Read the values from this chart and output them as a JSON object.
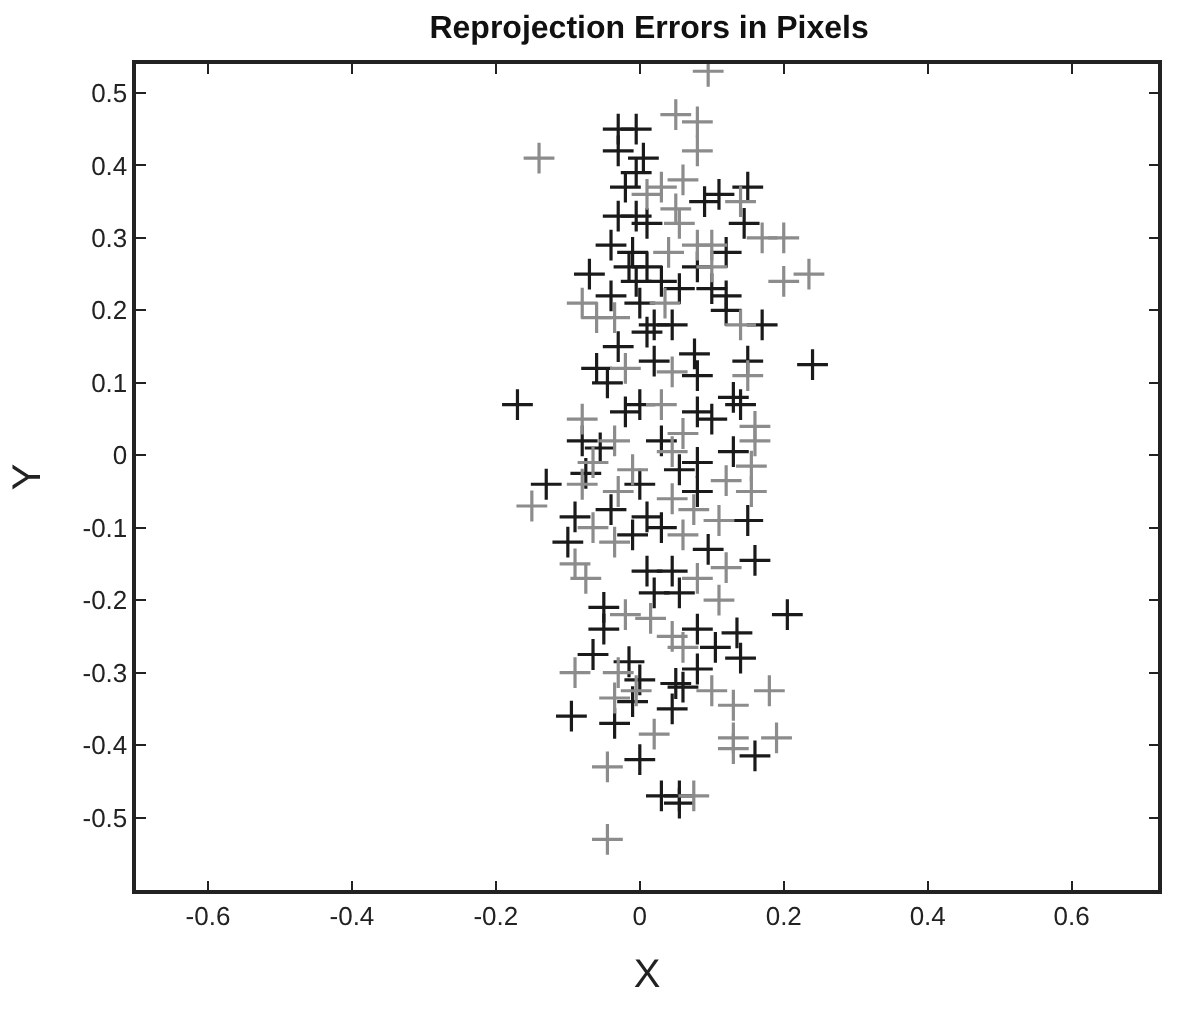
{
  "chart_data": {
    "type": "scatter",
    "title": "Reprojection Errors in Pixels",
    "xlabel": "X",
    "ylabel": "Y",
    "xlim": [
      -0.7,
      0.72
    ],
    "ylim": [
      -0.6,
      0.54
    ],
    "xticks": [
      -0.6,
      -0.4,
      -0.2,
      0,
      0.2,
      0.4,
      0.6
    ],
    "yticks": [
      -0.5,
      -0.4,
      -0.3,
      -0.2,
      -0.1,
      0,
      0.1,
      0.2,
      0.3,
      0.4,
      0.5
    ],
    "marker": "cross",
    "series": [
      {
        "color": "#1a1a1a",
        "x": [
          -0.03,
          -0.005,
          -0.03,
          0.005,
          -0.005,
          -0.02,
          0.11,
          0.09,
          0.15,
          -0.03,
          -0.005,
          0.01,
          0.145,
          -0.04,
          -0.01,
          0.12,
          -0.015,
          0.01,
          -0.07,
          0.03,
          0.08,
          -0.005,
          0.055,
          0.1,
          -0.04,
          0.0,
          0.12,
          0.02,
          0.045,
          0.12,
          0.17,
          0.24,
          0.15,
          -0.06,
          -0.045,
          0.02,
          0.08,
          0.076,
          -0.03,
          0.01,
          -0.17,
          0.13,
          0.14,
          0.1,
          -0.02,
          0.0,
          0.08,
          -0.08,
          -0.055,
          0.03,
          0.13,
          0.08,
          -0.075,
          0.055,
          -0.13,
          0.0,
          0.08,
          -0.04,
          -0.09,
          0.01,
          0.15,
          0.03,
          -0.1,
          -0.01,
          0.095,
          0.16,
          0.01,
          0.045,
          0.205,
          -0.05,
          0.02,
          0.055,
          -0.05,
          0.08,
          0.135,
          -0.065,
          -0.015,
          0.105,
          0.14,
          0.0,
          0.08,
          0.05,
          0.06,
          -0.01,
          0.045,
          -0.095,
          -0.035,
          0.16,
          0.0,
          0.03,
          0.055,
          0.055
        ],
        "values": [
          0.45,
          0.45,
          0.42,
          0.41,
          0.39,
          0.37,
          0.36,
          0.35,
          0.37,
          0.33,
          0.33,
          0.32,
          0.32,
          0.29,
          0.28,
          0.28,
          0.26,
          0.26,
          0.25,
          0.24,
          0.26,
          0.24,
          0.23,
          0.23,
          0.22,
          0.21,
          0.22,
          0.18,
          0.18,
          0.2,
          0.18,
          0.125,
          0.13,
          0.12,
          0.1,
          0.13,
          0.11,
          0.14,
          0.15,
          0.17,
          0.07,
          0.08,
          0.07,
          0.05,
          0.06,
          0.07,
          0.06,
          0.02,
          0.01,
          0.02,
          0.005,
          -0.01,
          -0.025,
          -0.02,
          -0.04,
          -0.04,
          -0.05,
          -0.075,
          -0.085,
          -0.085,
          -0.09,
          -0.1,
          -0.12,
          -0.11,
          -0.13,
          -0.145,
          -0.16,
          -0.16,
          -0.22,
          -0.21,
          -0.19,
          -0.19,
          -0.24,
          -0.24,
          -0.245,
          -0.275,
          -0.285,
          -0.265,
          -0.28,
          -0.31,
          -0.295,
          -0.315,
          -0.32,
          -0.34,
          -0.35,
          -0.36,
          -0.37,
          -0.415,
          -0.42,
          -0.47,
          -0.47,
          -0.48
        ]
      },
      {
        "color": "#8c8c8c",
        "x": [
          0.095,
          0.05,
          0.08,
          0.08,
          -0.14,
          0.01,
          0.06,
          0.03,
          0.14,
          0.05,
          0.055,
          0.17,
          0.2,
          0.04,
          0.08,
          0.1,
          0.1,
          0.2,
          0.235,
          -0.08,
          -0.06,
          -0.035,
          0.035,
          0.14,
          0.15,
          -0.02,
          0.045,
          0.16,
          0.16,
          0.03,
          -0.08,
          0.06,
          -0.035,
          0.045,
          0.155,
          -0.065,
          -0.01,
          -0.15,
          -0.08,
          -0.03,
          0.12,
          0.155,
          0.045,
          0.075,
          0.11,
          -0.065,
          -0.035,
          0.06,
          0.12,
          -0.09,
          -0.075,
          0.08,
          0.11,
          -0.02,
          0.015,
          0.045,
          0.06,
          -0.09,
          -0.03,
          0.1,
          0.18,
          -0.005,
          -0.035,
          0.13,
          0.02,
          0.13,
          0.19,
          0.13,
          -0.045,
          0.075,
          -0.045
        ],
        "values": [
          0.53,
          0.47,
          0.46,
          0.42,
          0.41,
          0.36,
          0.38,
          0.37,
          0.35,
          0.34,
          0.32,
          0.3,
          0.3,
          0.28,
          0.29,
          0.29,
          0.26,
          0.24,
          0.25,
          0.21,
          0.19,
          0.19,
          0.21,
          0.18,
          0.11,
          0.12,
          0.115,
          0.04,
          0.02,
          0.07,
          0.05,
          0.03,
          0.02,
          0.005,
          -0.015,
          -0.01,
          -0.02,
          -0.07,
          -0.04,
          -0.05,
          -0.035,
          -0.05,
          -0.06,
          -0.075,
          -0.09,
          -0.1,
          -0.12,
          -0.11,
          -0.155,
          -0.15,
          -0.17,
          -0.17,
          -0.2,
          -0.22,
          -0.225,
          -0.25,
          -0.265,
          -0.3,
          -0.3,
          -0.325,
          -0.325,
          -0.325,
          -0.335,
          -0.345,
          -0.385,
          -0.39,
          -0.39,
          -0.405,
          -0.43,
          -0.47,
          -0.53
        ]
      }
    ]
  }
}
